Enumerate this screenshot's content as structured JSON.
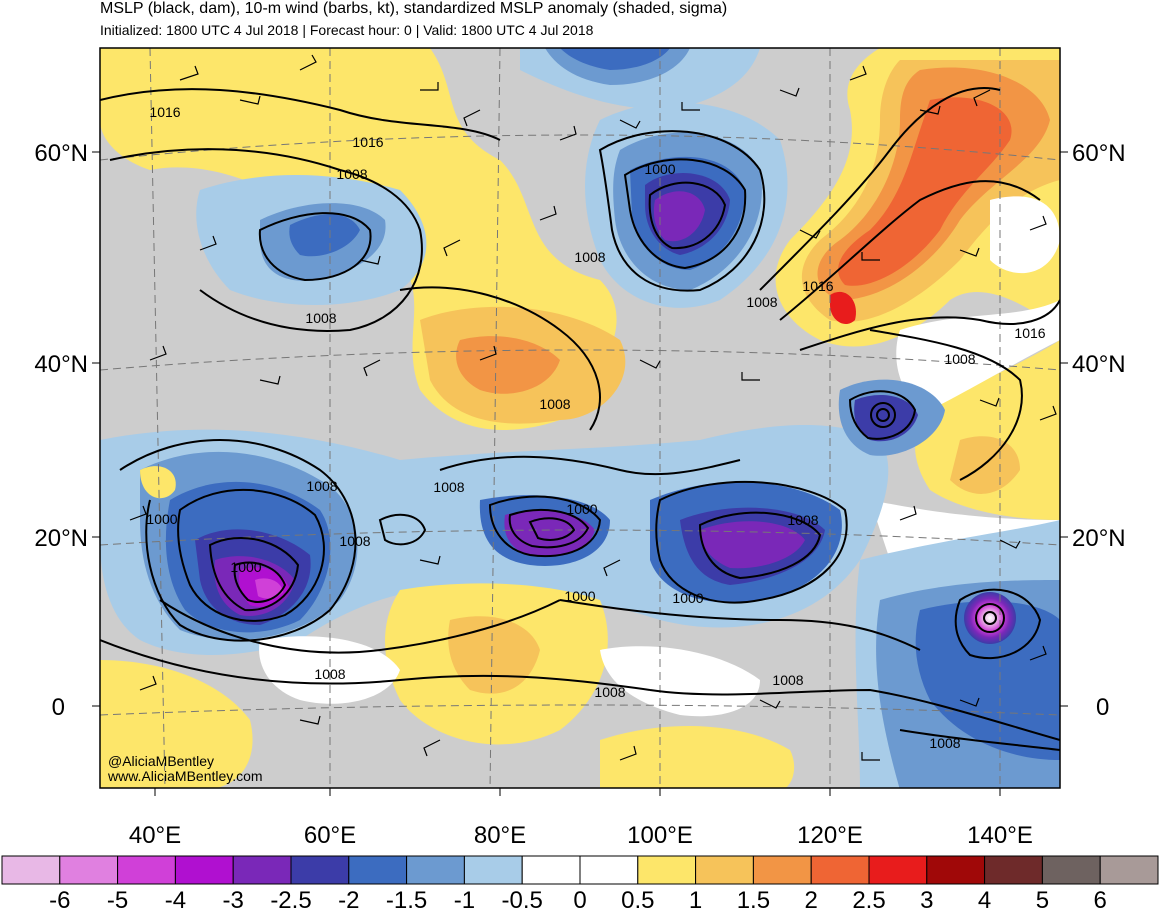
{
  "title": "MSLP (black, dam), 10-m wind (barbs, kt), standardized MSLP anomaly (shaded, sigma)",
  "subtitle": "Initialized: 1800 UTC 4 Jul 2018 | Forecast hour: 0 | Valid: 1800 UTC 4 Jul 2018",
  "credit": {
    "handle": "@AliciaMBentley",
    "site": "www.AliciaMBentley.com"
  },
  "latitude_labels": [
    "60°N",
    "40°N",
    "20°N",
    "0"
  ],
  "longitude_labels": [
    "40°E",
    "60°E",
    "80°E",
    "100°E",
    "120°E",
    "140°E"
  ],
  "contour_labels": [
    "1016",
    "1016",
    "1008",
    "1008",
    "1000",
    "1008",
    "1008",
    "1016",
    "1008",
    "1016",
    "1008",
    "1008",
    "1008",
    "1008",
    "1000",
    "1008",
    "1000",
    "1000",
    "1000",
    "1000",
    "1008",
    "1008",
    "1008",
    "1008"
  ],
  "colorbar": {
    "labels": [
      "-6",
      "-5",
      "-4",
      "-3",
      "-2.5",
      "-2",
      "-1.5",
      "-1",
      "-0.5",
      "0",
      "0.5",
      "1",
      "1.5",
      "2",
      "2.5",
      "3",
      "4",
      "5",
      "6"
    ],
    "colors": [
      "#e8b8e6",
      "#e080e0",
      "#d040d8",
      "#b010d0",
      "#7a28b8",
      "#3c3ca8",
      "#3c6cc0",
      "#6c9ad0",
      "#a8cce8",
      "#ffffff",
      "#ffffff",
      "#fde66a",
      "#f6c35a",
      "#f29545",
      "#ef6534",
      "#e81c1c",
      "#a00808",
      "#6e2a2a",
      "#6e6260",
      "#a89a98"
    ]
  },
  "map_features": {
    "cyclone_west_pacific": {
      "lat": 10,
      "lon": 138,
      "anomaly": "<-6"
    },
    "low_korea": {
      "lat": 34,
      "lon": 126,
      "anomaly": "-3"
    },
    "low_arabian_sea": {
      "lat": 15,
      "lon": 54,
      "anomaly": "-4"
    },
    "low_india": {
      "lat": 22,
      "lon": 87,
      "anomaly": "-3"
    },
    "low_south_china": {
      "lat": 20,
      "lon": 112,
      "anomaly": "-3"
    },
    "low_mongolia": {
      "lat": 52,
      "lon": 101,
      "anomaly": "-2.5"
    },
    "high_northeast_asia": {
      "lat": 47,
      "lon": 122,
      "anomaly": "2.5"
    }
  }
}
